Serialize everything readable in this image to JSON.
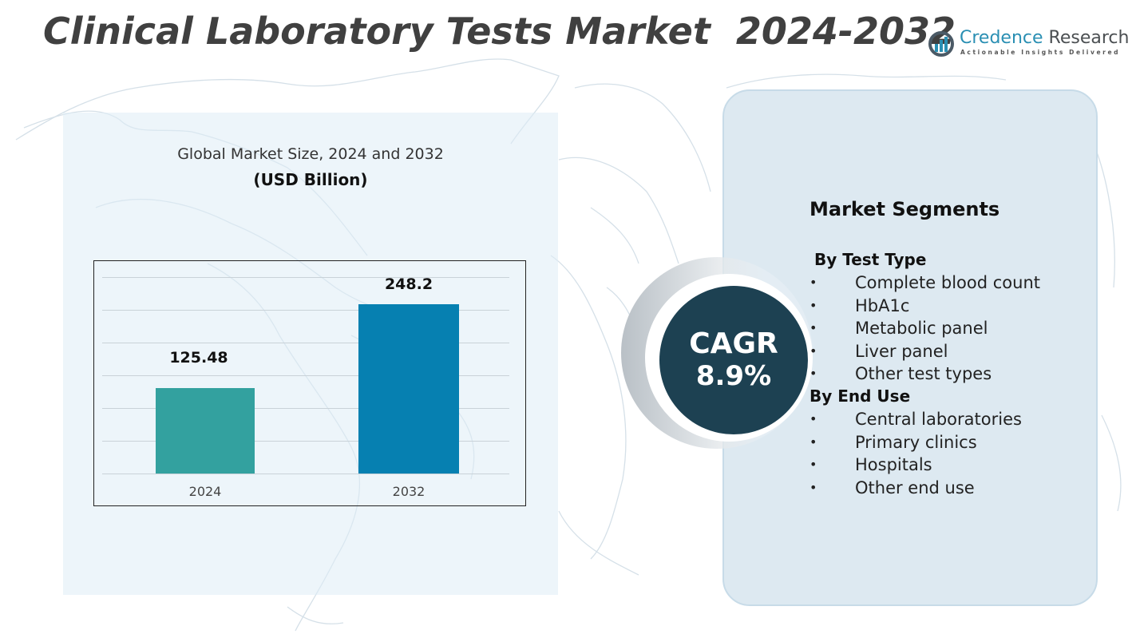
{
  "header": {
    "title": "Clinical Laboratory Tests Market  2024-2032"
  },
  "logo": {
    "name_part1": "Credence",
    "name_part2": " Research",
    "tagline": "Actionable Insights Delivered",
    "icon": "bar-chart-in-circle-icon",
    "brand_color": "#2a8fb3"
  },
  "chart": {
    "title": "Global Market Size, 2024 and 2032",
    "subtitle": "(USD Billion)"
  },
  "chart_data": {
    "type": "bar",
    "title": "Global Market Size, 2024 and 2032",
    "subtitle": "(USD Billion)",
    "categories": [
      "2024",
      "2032"
    ],
    "values": [
      125.48,
      248.2
    ],
    "value_labels": [
      "125.48",
      "248.2"
    ],
    "colors": [
      "#33a19f",
      "#0680b1"
    ],
    "xlabel": "",
    "ylabel": "USD Billion",
    "ylim": [
      0,
      300
    ],
    "grid": true,
    "legend": "none"
  },
  "cagr": {
    "label": "CAGR",
    "value": "8.9%",
    "color": "#1d4152"
  },
  "segments": {
    "title": "Market Segments",
    "groups": [
      {
        "label": "By Test Type",
        "items": [
          "Complete blood count",
          "HbA1c",
          "Metabolic panel",
          "Liver panel",
          "Other test types"
        ]
      },
      {
        "label": "By End Use",
        "items": [
          "Central laboratories",
          "Primary clinics",
          "Hospitals",
          "Other end use"
        ]
      }
    ],
    "bullet": "•"
  }
}
